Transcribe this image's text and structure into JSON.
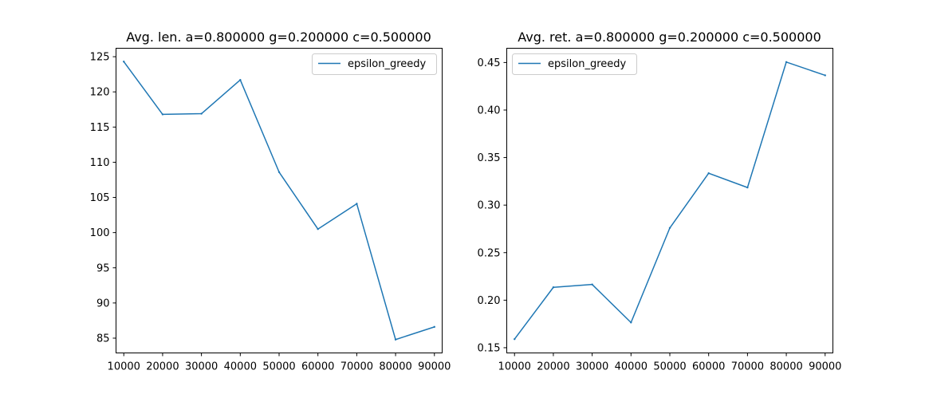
{
  "colors": {
    "series": "#1f77b4",
    "axes": "#000000",
    "legend_border": "#cccccc"
  },
  "chart_data": [
    {
      "type": "line",
      "title": "Avg. len. a=0.800000 g=0.200000 c=0.500000",
      "xlabel": "",
      "ylabel": "",
      "x": [
        10000,
        20000,
        30000,
        40000,
        50000,
        60000,
        70000,
        80000,
        90000
      ],
      "series": [
        {
          "name": "epsilon_greedy",
          "values": [
            124.3,
            116.8,
            116.9,
            121.7,
            108.6,
            100.5,
            104.1,
            84.8,
            86.6
          ]
        }
      ],
      "xlim": [
        8000,
        92000
      ],
      "ylim": [
        82.9,
        126.2
      ],
      "xticks": [
        10000,
        20000,
        30000,
        40000,
        50000,
        60000,
        70000,
        80000,
        90000
      ],
      "xtick_labels": [
        "10000",
        "20000",
        "30000",
        "40000",
        "50000",
        "60000",
        "70000",
        "80000",
        "90000"
      ],
      "yticks": [
        85,
        90,
        95,
        100,
        105,
        110,
        115,
        120,
        125
      ],
      "ytick_labels": [
        "85",
        "90",
        "95",
        "100",
        "105",
        "110",
        "115",
        "120",
        "125"
      ],
      "legend_position": "top-right",
      "grid": false
    },
    {
      "type": "line",
      "title": "Avg. ret. a=0.800000 g=0.200000 c=0.500000",
      "xlabel": "",
      "ylabel": "",
      "x": [
        10000,
        20000,
        30000,
        40000,
        50000,
        60000,
        70000,
        80000,
        90000
      ],
      "series": [
        {
          "name": "epsilon_greedy",
          "values": [
            0.159,
            0.2135,
            0.2165,
            0.1765,
            0.276,
            0.3335,
            0.3185,
            0.4505,
            0.4365
          ]
        }
      ],
      "xlim": [
        8000,
        92000
      ],
      "ylim": [
        0.1445,
        0.465
      ],
      "xticks": [
        10000,
        20000,
        30000,
        40000,
        50000,
        60000,
        70000,
        80000,
        90000
      ],
      "xtick_labels": [
        "10000",
        "20000",
        "30000",
        "40000",
        "50000",
        "60000",
        "70000",
        "80000",
        "90000"
      ],
      "yticks": [
        0.15,
        0.2,
        0.25,
        0.3,
        0.35,
        0.4,
        0.45
      ],
      "ytick_labels": [
        "0.15",
        "0.20",
        "0.25",
        "0.30",
        "0.35",
        "0.40",
        "0.45"
      ],
      "legend_position": "top-left",
      "grid": false
    }
  ]
}
